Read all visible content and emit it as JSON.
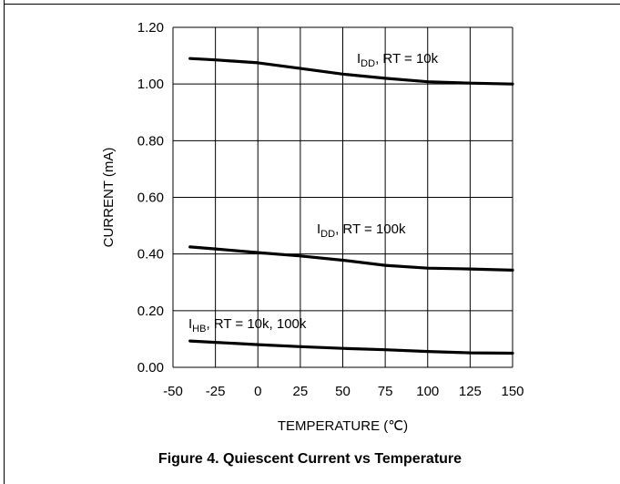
{
  "chart_data": {
    "type": "line",
    "title": "",
    "xlabel": "TEMPERATURE (℃)",
    "ylabel": "CURRENT (mA)",
    "xlim": [
      -50,
      150
    ],
    "ylim": [
      0,
      1.2
    ],
    "xticks": [
      -50,
      -25,
      0,
      25,
      50,
      75,
      100,
      125,
      150
    ],
    "xtick_labels": [
      "-50",
      "-25",
      "0",
      "25",
      "50",
      "75",
      "100",
      "125",
      "150"
    ],
    "yticks": [
      0,
      0.2,
      0.4,
      0.6,
      0.8,
      1.0,
      1.2
    ],
    "ytick_labels": [
      "0.00",
      "0.20",
      "0.40",
      "0.60",
      "0.80",
      "1.00",
      "1.20"
    ],
    "grid": true,
    "line_color": "#000000",
    "series": [
      {
        "annotation": {
          "main": "I",
          "sub": "DD",
          "rest": ", RT = 10k"
        },
        "x": [
          -40,
          -25,
          0,
          25,
          50,
          75,
          100,
          125,
          150
        ],
        "y": [
          1.09,
          1.085,
          1.075,
          1.055,
          1.035,
          1.02,
          1.008,
          1.003,
          1.0
        ]
      },
      {
        "annotation": {
          "main": "I",
          "sub": "DD",
          "rest": ", RT = 100k"
        },
        "x": [
          -40,
          -25,
          0,
          25,
          50,
          75,
          100,
          125,
          150
        ],
        "y": [
          0.425,
          0.418,
          0.405,
          0.393,
          0.378,
          0.36,
          0.35,
          0.347,
          0.343
        ]
      },
      {
        "annotation": {
          "main": "I",
          "sub": "HB",
          "rest": ", RT = 10k, 100k"
        },
        "x": [
          -40,
          -25,
          0,
          25,
          50,
          75,
          100,
          125,
          150
        ],
        "y": [
          0.093,
          0.088,
          0.08,
          0.073,
          0.067,
          0.062,
          0.056,
          0.051,
          0.05
        ]
      }
    ]
  },
  "caption": "Figure 4. Quiescent Current vs Temperature"
}
